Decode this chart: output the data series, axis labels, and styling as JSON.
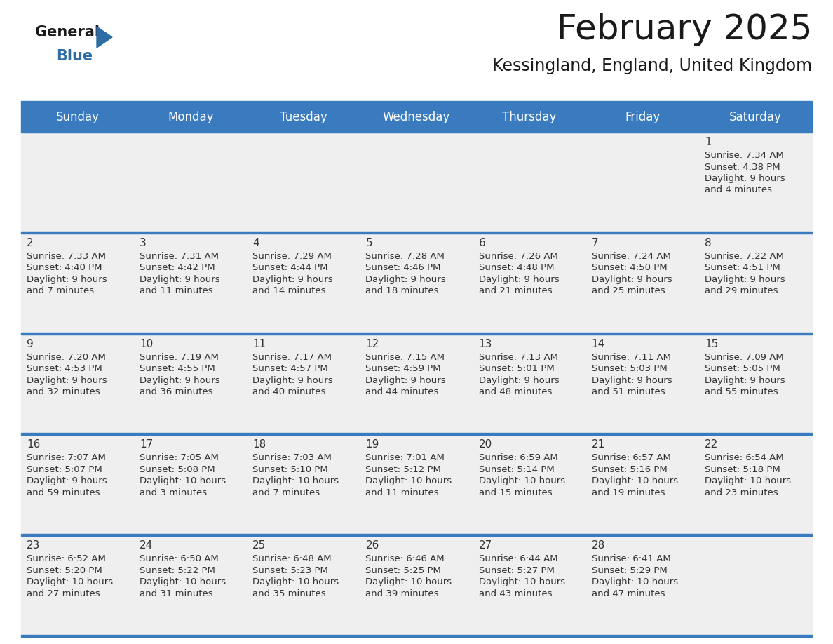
{
  "title": "February 2025",
  "subtitle": "Kessingland, England, United Kingdom",
  "days_of_week": [
    "Sunday",
    "Monday",
    "Tuesday",
    "Wednesday",
    "Thursday",
    "Friday",
    "Saturday"
  ],
  "header_bg": "#3a7bbf",
  "header_text": "#FFFFFF",
  "cell_bg": "#EFEFEF",
  "divider_color": "#3a7bbf",
  "day_number_color": "#333333",
  "text_color": "#333333",
  "logo_general_color": "#1A1A1A",
  "logo_blue_color": "#2E6DA4",
  "calendar_data": [
    [
      null,
      null,
      null,
      null,
      null,
      null,
      {
        "day": 1,
        "sunrise": "7:34 AM",
        "sunset": "4:38 PM",
        "daylight": "9 hours and 4 minutes."
      }
    ],
    [
      {
        "day": 2,
        "sunrise": "7:33 AM",
        "sunset": "4:40 PM",
        "daylight": "9 hours and 7 minutes."
      },
      {
        "day": 3,
        "sunrise": "7:31 AM",
        "sunset": "4:42 PM",
        "daylight": "9 hours and 11 minutes."
      },
      {
        "day": 4,
        "sunrise": "7:29 AM",
        "sunset": "4:44 PM",
        "daylight": "9 hours and 14 minutes."
      },
      {
        "day": 5,
        "sunrise": "7:28 AM",
        "sunset": "4:46 PM",
        "daylight": "9 hours and 18 minutes."
      },
      {
        "day": 6,
        "sunrise": "7:26 AM",
        "sunset": "4:48 PM",
        "daylight": "9 hours and 21 minutes."
      },
      {
        "day": 7,
        "sunrise": "7:24 AM",
        "sunset": "4:50 PM",
        "daylight": "9 hours and 25 minutes."
      },
      {
        "day": 8,
        "sunrise": "7:22 AM",
        "sunset": "4:51 PM",
        "daylight": "9 hours and 29 minutes."
      }
    ],
    [
      {
        "day": 9,
        "sunrise": "7:20 AM",
        "sunset": "4:53 PM",
        "daylight": "9 hours and 32 minutes."
      },
      {
        "day": 10,
        "sunrise": "7:19 AM",
        "sunset": "4:55 PM",
        "daylight": "9 hours and 36 minutes."
      },
      {
        "day": 11,
        "sunrise": "7:17 AM",
        "sunset": "4:57 PM",
        "daylight": "9 hours and 40 minutes."
      },
      {
        "day": 12,
        "sunrise": "7:15 AM",
        "sunset": "4:59 PM",
        "daylight": "9 hours and 44 minutes."
      },
      {
        "day": 13,
        "sunrise": "7:13 AM",
        "sunset": "5:01 PM",
        "daylight": "9 hours and 48 minutes."
      },
      {
        "day": 14,
        "sunrise": "7:11 AM",
        "sunset": "5:03 PM",
        "daylight": "9 hours and 51 minutes."
      },
      {
        "day": 15,
        "sunrise": "7:09 AM",
        "sunset": "5:05 PM",
        "daylight": "9 hours and 55 minutes."
      }
    ],
    [
      {
        "day": 16,
        "sunrise": "7:07 AM",
        "sunset": "5:07 PM",
        "daylight": "9 hours and 59 minutes."
      },
      {
        "day": 17,
        "sunrise": "7:05 AM",
        "sunset": "5:08 PM",
        "daylight": "10 hours and 3 minutes."
      },
      {
        "day": 18,
        "sunrise": "7:03 AM",
        "sunset": "5:10 PM",
        "daylight": "10 hours and 7 minutes."
      },
      {
        "day": 19,
        "sunrise": "7:01 AM",
        "sunset": "5:12 PM",
        "daylight": "10 hours and 11 minutes."
      },
      {
        "day": 20,
        "sunrise": "6:59 AM",
        "sunset": "5:14 PM",
        "daylight": "10 hours and 15 minutes."
      },
      {
        "day": 21,
        "sunrise": "6:57 AM",
        "sunset": "5:16 PM",
        "daylight": "10 hours and 19 minutes."
      },
      {
        "day": 22,
        "sunrise": "6:54 AM",
        "sunset": "5:18 PM",
        "daylight": "10 hours and 23 minutes."
      }
    ],
    [
      {
        "day": 23,
        "sunrise": "6:52 AM",
        "sunset": "5:20 PM",
        "daylight": "10 hours and 27 minutes."
      },
      {
        "day": 24,
        "sunrise": "6:50 AM",
        "sunset": "5:22 PM",
        "daylight": "10 hours and 31 minutes."
      },
      {
        "day": 25,
        "sunrise": "6:48 AM",
        "sunset": "5:23 PM",
        "daylight": "10 hours and 35 minutes."
      },
      {
        "day": 26,
        "sunrise": "6:46 AM",
        "sunset": "5:25 PM",
        "daylight": "10 hours and 39 minutes."
      },
      {
        "day": 27,
        "sunrise": "6:44 AM",
        "sunset": "5:27 PM",
        "daylight": "10 hours and 43 minutes."
      },
      {
        "day": 28,
        "sunrise": "6:41 AM",
        "sunset": "5:29 PM",
        "daylight": "10 hours and 47 minutes."
      },
      null
    ]
  ]
}
